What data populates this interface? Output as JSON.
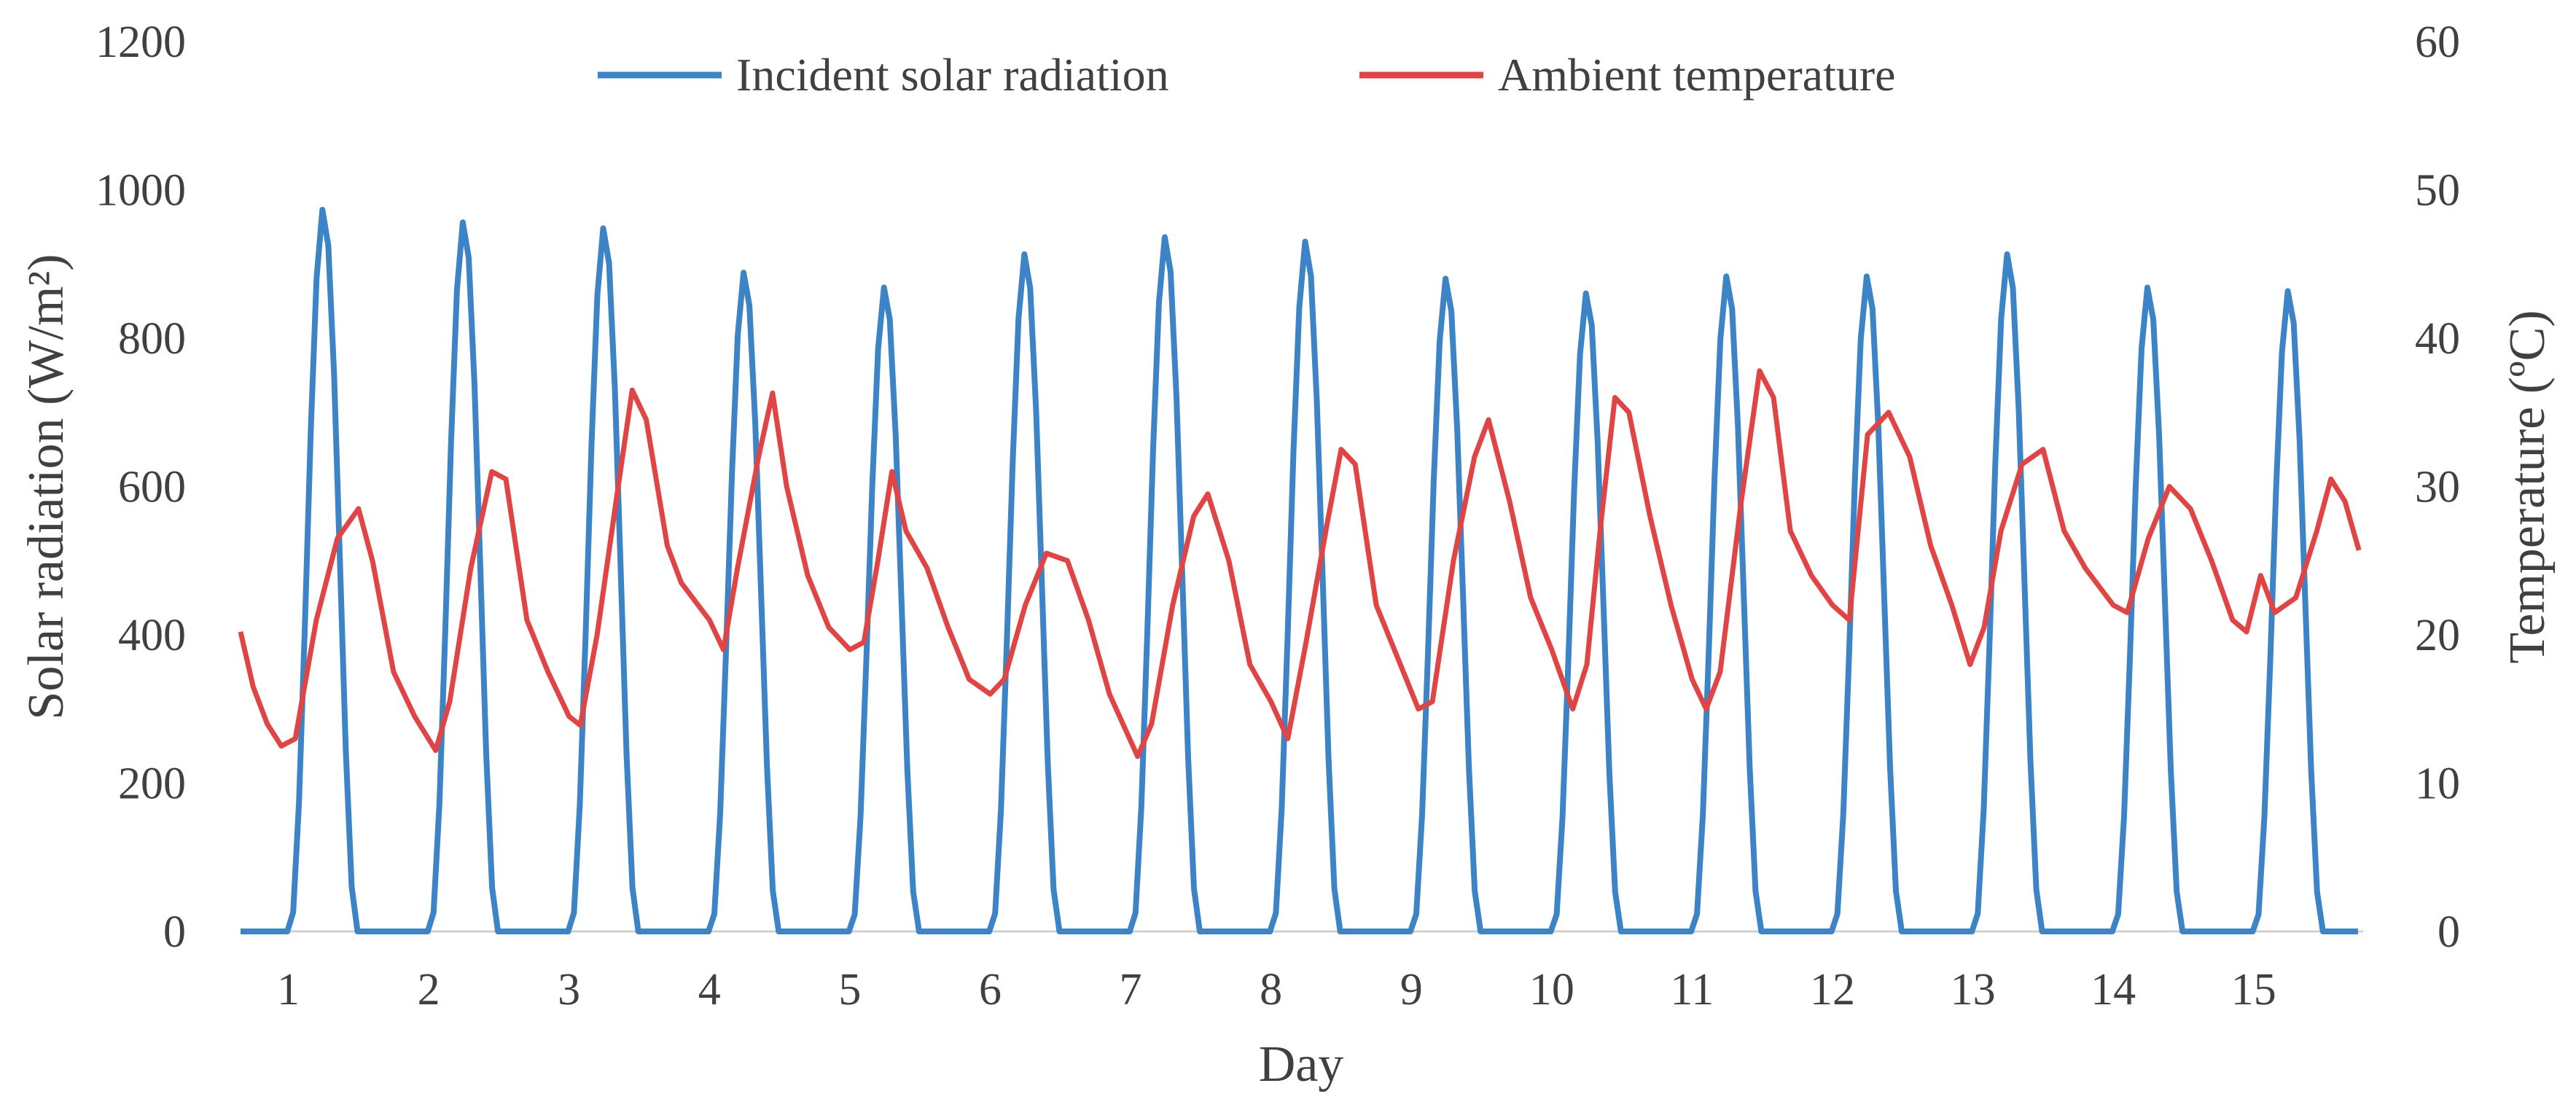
{
  "chart_data": {
    "type": "line",
    "title": "",
    "xlabel": "Day",
    "ylabel_left": "Solar radiation (W/m²)",
    "ylabel_right": "Temperature (ºC)",
    "ylim_left": [
      0,
      1200
    ],
    "ylim_right": [
      0,
      60
    ],
    "yticks_left": [
      "0",
      "200",
      "400",
      "600",
      "800",
      "1000",
      "1200"
    ],
    "yticks_right": [
      "0",
      "10",
      "20",
      "30",
      "40",
      "50",
      "60"
    ],
    "categories": [
      "1",
      "2",
      "3",
      "4",
      "5",
      "6",
      "7",
      "8",
      "9",
      "10",
      "11",
      "12",
      "13",
      "14",
      "15"
    ],
    "grid": false,
    "legend_position": "top-center",
    "series": [
      {
        "name": "Incident solar radiation",
        "axis": "left",
        "color": "#3C84C6",
        "day_peaks_wm2": [
          975,
          958,
          950,
          890,
          870,
          915,
          938,
          932,
          882,
          862,
          885,
          885,
          915,
          870,
          865
        ]
      },
      {
        "name": "Ambient temperature",
        "axis": "right",
        "color": "#E04545",
        "points": [
          [
            0.66,
            20.2
          ],
          [
            0.75,
            16.5
          ],
          [
            0.85,
            14.0
          ],
          [
            0.95,
            12.5
          ],
          [
            1.05,
            13.0
          ],
          [
            1.2,
            21.0
          ],
          [
            1.35,
            26.5
          ],
          [
            1.5,
            28.5
          ],
          [
            1.6,
            25.0
          ],
          [
            1.75,
            17.5
          ],
          [
            1.9,
            14.5
          ],
          [
            2.05,
            12.2
          ],
          [
            2.15,
            15.5
          ],
          [
            2.3,
            24.5
          ],
          [
            2.45,
            31.0
          ],
          [
            2.55,
            30.5
          ],
          [
            2.7,
            21.0
          ],
          [
            2.85,
            17.5
          ],
          [
            3.0,
            14.5
          ],
          [
            3.08,
            13.9
          ],
          [
            3.2,
            20.0
          ],
          [
            3.35,
            30.0
          ],
          [
            3.45,
            36.5
          ],
          [
            3.55,
            34.5
          ],
          [
            3.7,
            26.0
          ],
          [
            3.8,
            23.5
          ],
          [
            4.0,
            21.0
          ],
          [
            4.1,
            19.0
          ],
          [
            4.2,
            24.5
          ],
          [
            4.35,
            32.0
          ],
          [
            4.45,
            36.3
          ],
          [
            4.55,
            30.0
          ],
          [
            4.7,
            24.0
          ],
          [
            4.85,
            20.5
          ],
          [
            5.0,
            19.0
          ],
          [
            5.1,
            19.5
          ],
          [
            5.2,
            25.0
          ],
          [
            5.3,
            31.0
          ],
          [
            5.4,
            27.0
          ],
          [
            5.55,
            24.5
          ],
          [
            5.7,
            20.5
          ],
          [
            5.85,
            17.0
          ],
          [
            6.0,
            16.0
          ],
          [
            6.1,
            17.0
          ],
          [
            6.25,
            22.0
          ],
          [
            6.4,
            25.5
          ],
          [
            6.55,
            25.0
          ],
          [
            6.7,
            21.0
          ],
          [
            6.85,
            16.0
          ],
          [
            7.05,
            11.8
          ],
          [
            7.15,
            14.0
          ],
          [
            7.3,
            22.0
          ],
          [
            7.45,
            28.0
          ],
          [
            7.55,
            29.5
          ],
          [
            7.7,
            25.0
          ],
          [
            7.85,
            18.0
          ],
          [
            8.0,
            15.5
          ],
          [
            8.12,
            13.0
          ],
          [
            8.25,
            19.5
          ],
          [
            8.4,
            27.5
          ],
          [
            8.5,
            32.5
          ],
          [
            8.6,
            31.5
          ],
          [
            8.75,
            22.0
          ],
          [
            8.9,
            18.5
          ],
          [
            9.05,
            15.0
          ],
          [
            9.15,
            15.5
          ],
          [
            9.3,
            25.0
          ],
          [
            9.45,
            32.0
          ],
          [
            9.55,
            34.5
          ],
          [
            9.7,
            29.0
          ],
          [
            9.85,
            22.5
          ],
          [
            10.0,
            19.0
          ],
          [
            10.15,
            15.0
          ],
          [
            10.25,
            18.0
          ],
          [
            10.35,
            27.5
          ],
          [
            10.45,
            36.0
          ],
          [
            10.55,
            35.0
          ],
          [
            10.7,
            28.0
          ],
          [
            10.85,
            22.0
          ],
          [
            11.0,
            17.0
          ],
          [
            11.1,
            15.0
          ],
          [
            11.2,
            17.5
          ],
          [
            11.35,
            29.0
          ],
          [
            11.48,
            37.8
          ],
          [
            11.58,
            36.0
          ],
          [
            11.7,
            27.0
          ],
          [
            11.85,
            24.0
          ],
          [
            12.0,
            22.0
          ],
          [
            12.12,
            21.0
          ],
          [
            12.25,
            33.5
          ],
          [
            12.4,
            35.0
          ],
          [
            12.55,
            32.0
          ],
          [
            12.7,
            26.0
          ],
          [
            12.85,
            22.0
          ],
          [
            12.98,
            18.0
          ],
          [
            13.08,
            20.5
          ],
          [
            13.2,
            27.0
          ],
          [
            13.35,
            31.5
          ],
          [
            13.5,
            32.5
          ],
          [
            13.65,
            27.0
          ],
          [
            13.8,
            24.5
          ],
          [
            14.0,
            22.0
          ],
          [
            14.1,
            21.5
          ],
          [
            14.25,
            26.5
          ],
          [
            14.4,
            30.0
          ],
          [
            14.55,
            28.5
          ],
          [
            14.7,
            25.0
          ],
          [
            14.85,
            21.0
          ],
          [
            14.95,
            20.2
          ],
          [
            15.05,
            24.0
          ],
          [
            15.15,
            21.5
          ],
          [
            15.3,
            22.5
          ],
          [
            15.45,
            27.0
          ],
          [
            15.55,
            30.5
          ],
          [
            15.65,
            29.0
          ],
          [
            15.75,
            25.7
          ]
        ]
      }
    ]
  }
}
